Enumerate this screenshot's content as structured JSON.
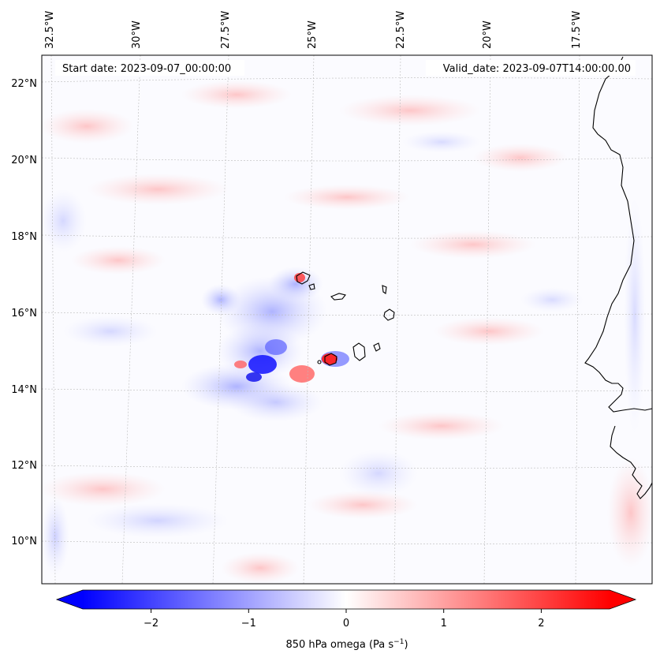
{
  "map": {
    "start_label": "Start date: 2023-09-07_00:00:00",
    "valid_label": "Valid_date: 2023-09-07T14:00:00.00",
    "lon_labels": [
      "32.5°W",
      "30°W",
      "27.5°W",
      "25°W",
      "22.5°W",
      "20°W",
      "17.5°W"
    ],
    "lat_labels": [
      "22°N",
      "20°N",
      "18°N",
      "16°N",
      "14°N",
      "12°N",
      "10°N"
    ]
  },
  "colorbar": {
    "ticks": [
      "−2",
      "−1",
      "0",
      "1",
      "2"
    ],
    "tick_values": [
      -2,
      -1,
      0,
      1,
      2
    ],
    "vmin": -2.7,
    "vmax": 2.7,
    "label_main": "850 hPa omega (Pa s",
    "label_exp": "−1",
    "label_end": ")",
    "colors": {
      "negative": "#0000ff",
      "zero": "#ffffff",
      "positive": "#ff0000"
    }
  },
  "colors": {
    "coastline": "#000000",
    "gridline": "#bbbbbb"
  }
}
